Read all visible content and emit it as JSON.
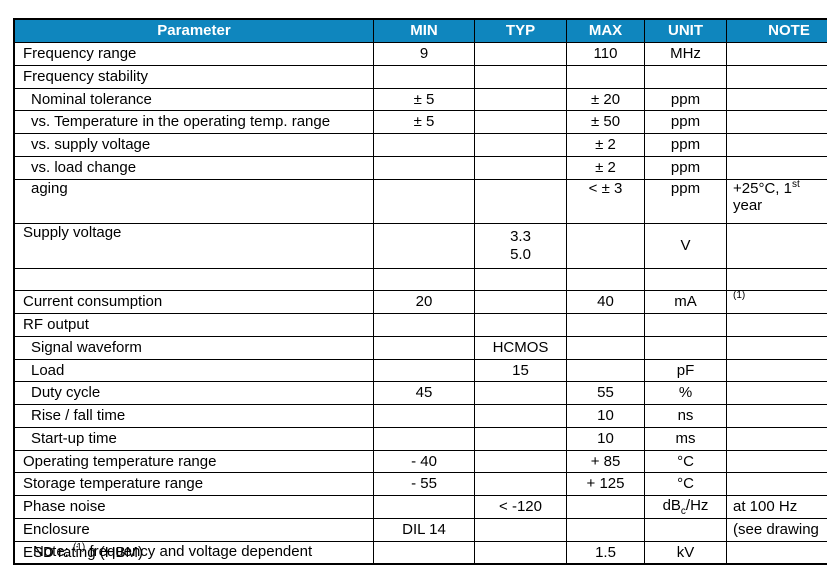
{
  "page": {
    "background": "#ffffff"
  },
  "table": {
    "header": {
      "bg_color": "#0F86BE",
      "text_color": "#ffffff",
      "columns": [
        "Parameter",
        "MIN",
        "TYP",
        "MAX",
        "UNIT",
        "NOTE"
      ]
    },
    "rows": [
      {
        "param": "Frequency range",
        "min": "9",
        "typ": "",
        "max": "110",
        "unit": "MHz",
        "note": ""
      },
      {
        "param": "Frequency stability",
        "min": "",
        "typ": "",
        "max": "",
        "unit": "",
        "note": ""
      },
      {
        "param": "Nominal tolerance",
        "indent": true,
        "min": "± 5",
        "typ": "",
        "max": "± 20",
        "unit": "ppm",
        "note": ""
      },
      {
        "param": "vs. Temperature in the operating temp. range",
        "indent": true,
        "min": "± 5",
        "typ": "",
        "max": "± 50",
        "unit": "ppm",
        "note": ""
      },
      {
        "param": "vs. supply voltage",
        "indent": true,
        "min": "",
        "typ": "",
        "max": "± 2",
        "unit": "ppm",
        "note": ""
      },
      {
        "param": "vs. load change",
        "indent": true,
        "min": "",
        "typ": "",
        "max": "± 2",
        "unit": "ppm",
        "note": ""
      },
      {
        "param": "aging",
        "indent": true,
        "tall": true,
        "top_cells": [
          "param",
          "max",
          "unit",
          "note"
        ],
        "min": "",
        "typ": "",
        "max": "< ± 3",
        "unit": "ppm",
        "note": [
          {
            "t": "+25°C, 1"
          },
          {
            "sup": "st"
          },
          {
            "br": true
          },
          {
            "t": "year"
          }
        ]
      },
      {
        "param": "Supply voltage",
        "tall": true,
        "top_cells": [
          "param"
        ],
        "min": "",
        "typ": [
          {
            "t": "3.3"
          },
          {
            "br": true
          },
          {
            "t": "5.0"
          }
        ],
        "max": "",
        "unit": "V",
        "note": ""
      },
      {
        "param": "",
        "min": "",
        "typ": "",
        "max": "",
        "unit": "",
        "note": ""
      },
      {
        "param": "Current consumption",
        "top_cells": [
          "note"
        ],
        "min": "20",
        "typ": "",
        "max": "40",
        "unit": "mA",
        "note": [
          {
            "sup": "(1)"
          }
        ]
      },
      {
        "param": "RF output",
        "min": "",
        "typ": "",
        "max": "",
        "unit": "",
        "note": ""
      },
      {
        "param": "Signal waveform",
        "indent": true,
        "min": "",
        "typ": "HCMOS",
        "max": "",
        "unit": "",
        "note": ""
      },
      {
        "param": "Load",
        "indent": true,
        "min": "",
        "typ": "15",
        "max": "",
        "unit": "pF",
        "note": ""
      },
      {
        "param": "Duty cycle",
        "indent": true,
        "min": "45",
        "typ": "",
        "max": "55",
        "unit": "%",
        "note": ""
      },
      {
        "param": "Rise / fall time",
        "indent": true,
        "min": "",
        "typ": "",
        "max": "10",
        "unit": "ns",
        "note": ""
      },
      {
        "param": "Start-up time",
        "indent": true,
        "min": "",
        "typ": "",
        "max": "10",
        "unit": "ms",
        "note": ""
      },
      {
        "param": "Operating temperature range",
        "min": "- 40",
        "typ": "",
        "max": "+ 85",
        "unit": "°C",
        "note": ""
      },
      {
        "param": "Storage temperature range",
        "min": "- 55",
        "typ": "",
        "max": "+ 125",
        "unit": "°C",
        "note": ""
      },
      {
        "param": "Phase noise",
        "min": "",
        "typ": "< -120",
        "max": "",
        "unit": [
          {
            "t": "dB"
          },
          {
            "sub": "c"
          },
          {
            "t": "/Hz"
          }
        ],
        "note": "at 100 Hz"
      },
      {
        "param": "Enclosure",
        "min": "DIL 14",
        "typ": "",
        "max": "",
        "unit": "",
        "note": "(see drawing"
      },
      {
        "param": "ESD rating (HBM)",
        "min": "",
        "typ": "",
        "max": "1.5",
        "unit": "kV",
        "note": ""
      }
    ]
  },
  "footnote": {
    "segments": [
      {
        "t": "Note: "
      },
      {
        "sup": "(1)"
      },
      {
        "t": " frequency and voltage dependent"
      }
    ]
  }
}
